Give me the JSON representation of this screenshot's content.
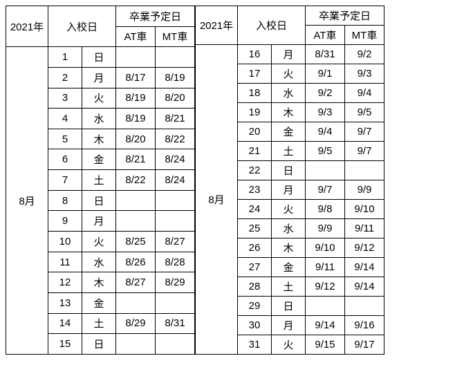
{
  "columns": {
    "year": "2021年",
    "enroll": "入校日",
    "grad": "卒業予定日",
    "at": "AT車",
    "mt": "MT車"
  },
  "left": {
    "month": "8月",
    "rows": [
      {
        "d": "1",
        "w": "日",
        "at": "",
        "mt": ""
      },
      {
        "d": "2",
        "w": "月",
        "at": "8/17",
        "mt": "8/19"
      },
      {
        "d": "3",
        "w": "火",
        "at": "8/19",
        "mt": "8/20"
      },
      {
        "d": "4",
        "w": "水",
        "at": "8/19",
        "mt": "8/21"
      },
      {
        "d": "5",
        "w": "木",
        "at": "8/20",
        "mt": "8/22"
      },
      {
        "d": "6",
        "w": "金",
        "at": "8/21",
        "mt": "8/24"
      },
      {
        "d": "7",
        "w": "土",
        "at": "8/22",
        "mt": "8/24"
      },
      {
        "d": "8",
        "w": "日",
        "at": "",
        "mt": ""
      },
      {
        "d": "9",
        "w": "月",
        "at": "",
        "mt": ""
      },
      {
        "d": "10",
        "w": "火",
        "at": "8/25",
        "mt": "8/27"
      },
      {
        "d": "11",
        "w": "水",
        "at": "8/26",
        "mt": "8/28"
      },
      {
        "d": "12",
        "w": "木",
        "at": "8/27",
        "mt": "8/29"
      },
      {
        "d": "13",
        "w": "金",
        "at": "",
        "mt": ""
      },
      {
        "d": "14",
        "w": "土",
        "at": "8/29",
        "mt": "8/31"
      },
      {
        "d": "15",
        "w": "日",
        "at": "",
        "mt": ""
      }
    ]
  },
  "right": {
    "month": "8月",
    "rows": [
      {
        "d": "16",
        "w": "月",
        "at": "8/31",
        "mt": "9/2"
      },
      {
        "d": "17",
        "w": "火",
        "at": "9/1",
        "mt": "9/3"
      },
      {
        "d": "18",
        "w": "水",
        "at": "9/2",
        "mt": "9/4"
      },
      {
        "d": "19",
        "w": "木",
        "at": "9/3",
        "mt": "9/5"
      },
      {
        "d": "20",
        "w": "金",
        "at": "9/4",
        "mt": "9/7"
      },
      {
        "d": "21",
        "w": "土",
        "at": "9/5",
        "mt": "9/7"
      },
      {
        "d": "22",
        "w": "日",
        "at": "",
        "mt": ""
      },
      {
        "d": "23",
        "w": "月",
        "at": "9/7",
        "mt": "9/9"
      },
      {
        "d": "24",
        "w": "火",
        "at": "9/8",
        "mt": "9/10"
      },
      {
        "d": "25",
        "w": "水",
        "at": "9/9",
        "mt": "9/11"
      },
      {
        "d": "26",
        "w": "木",
        "at": "9/10",
        "mt": "9/12"
      },
      {
        "d": "27",
        "w": "金",
        "at": "9/11",
        "mt": "9/14"
      },
      {
        "d": "28",
        "w": "土",
        "at": "9/12",
        "mt": "9/14"
      },
      {
        "d": "29",
        "w": "日",
        "at": "",
        "mt": ""
      },
      {
        "d": "30",
        "w": "月",
        "at": "9/14",
        "mt": "9/16"
      },
      {
        "d": "31",
        "w": "火",
        "at": "9/15",
        "mt": "9/17"
      }
    ]
  }
}
